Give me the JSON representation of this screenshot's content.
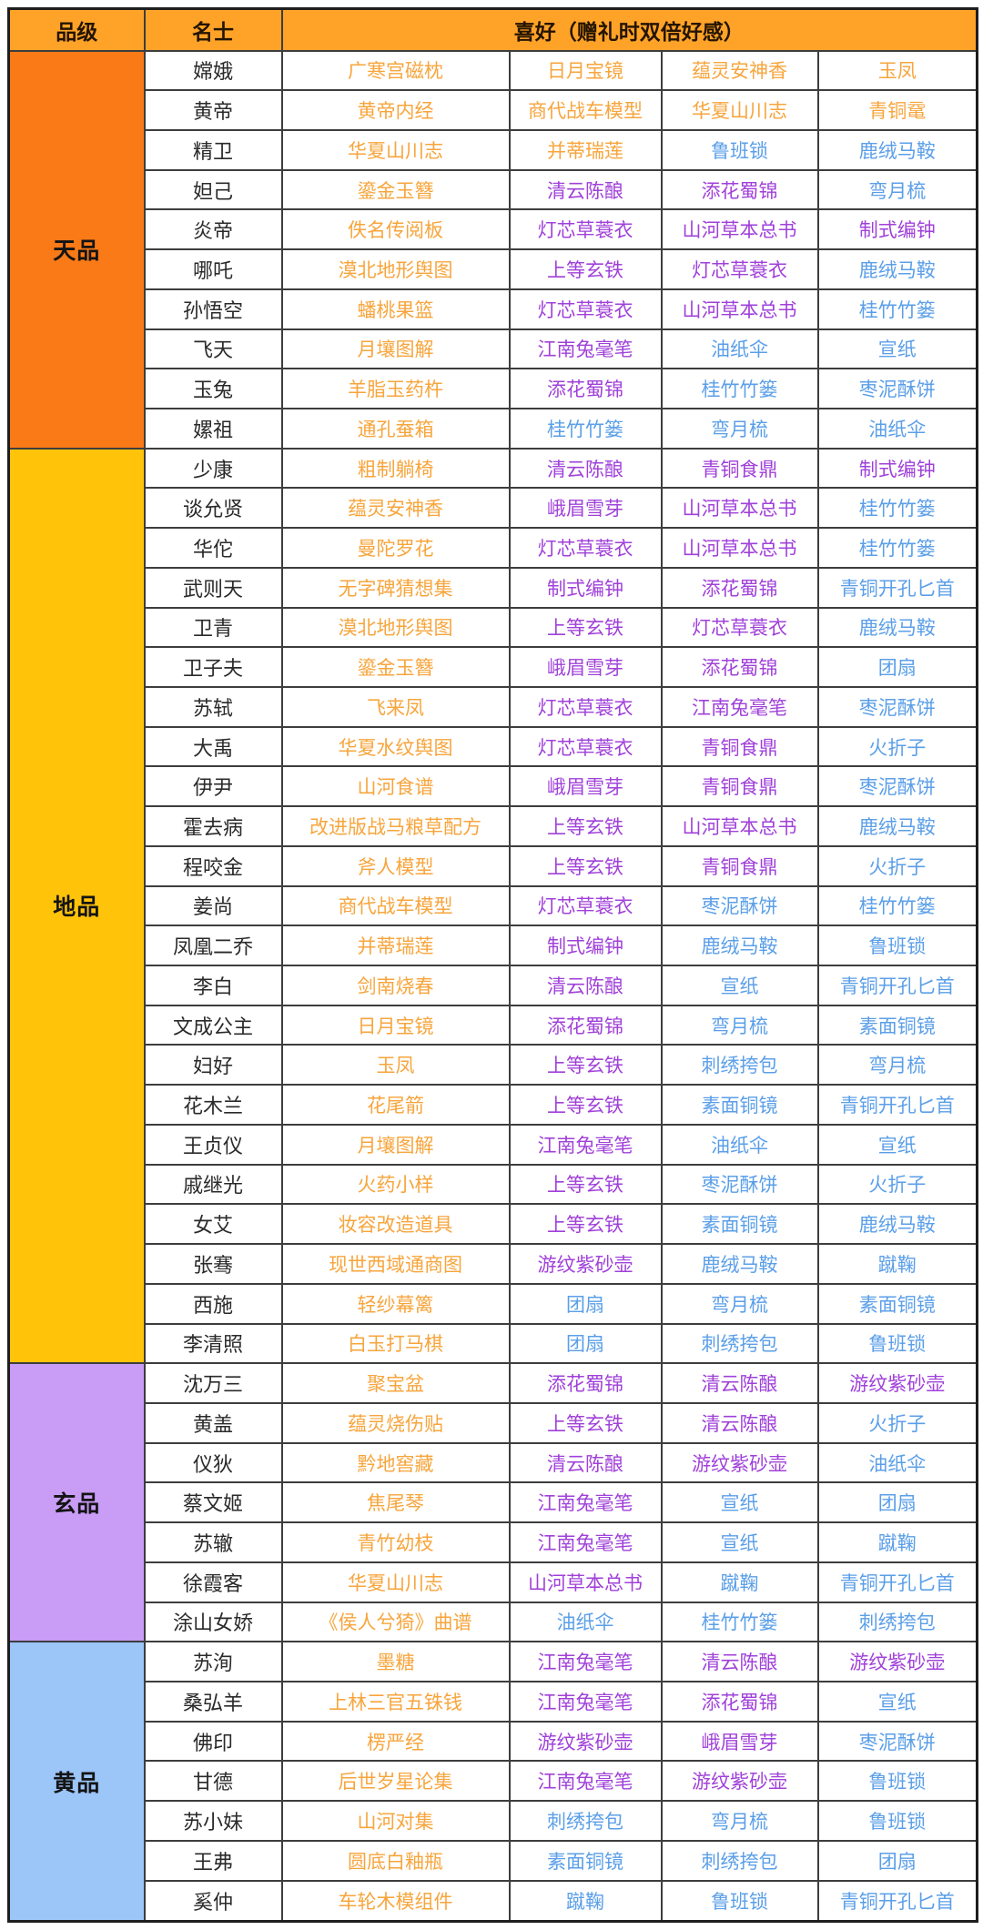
{
  "table_meta": {
    "header_bg": "#FFA328",
    "border_color": "#3d3d3d",
    "name_text_color": "#2a2a2a"
  },
  "chart_data": {
    "type": "table",
    "columns": [
      "品级",
      "名士",
      "喜好（赠礼时双倍好感）"
    ],
    "gift_color_palette": {
      "orange": "#F7A53C",
      "purple": "#A041D9",
      "blue": "#5B9FE8"
    },
    "sections": [
      {
        "grade": "天品",
        "grade_bg": "#FA7A17",
        "rows": [
          {
            "name": "嫦娥",
            "gifts": [
              "广寒宫磁枕",
              "日月宝镜",
              "蕴灵安神香",
              "玉凤"
            ],
            "gift_colors": [
              "orange",
              "orange",
              "orange",
              "orange"
            ]
          },
          {
            "name": "黄帝",
            "gifts": [
              "黄帝内经",
              "商代战车模型",
              "华夏山川志",
              "青铜鼋"
            ],
            "gift_colors": [
              "orange",
              "orange",
              "orange",
              "orange"
            ]
          },
          {
            "name": "精卫",
            "gifts": [
              "华夏山川志",
              "并蒂瑞莲",
              "鲁班锁",
              "鹿绒马鞍"
            ],
            "gift_colors": [
              "orange",
              "orange",
              "blue",
              "blue"
            ]
          },
          {
            "name": "妲己",
            "gifts": [
              "鎏金玉簪",
              "清云陈酿",
              "添花蜀锦",
              "弯月梳"
            ],
            "gift_colors": [
              "orange",
              "purple",
              "purple",
              "blue"
            ]
          },
          {
            "name": "炎帝",
            "gifts": [
              "佚名传阅板",
              "灯芯草蓑衣",
              "山河草本总书",
              "制式编钟"
            ],
            "gift_colors": [
              "orange",
              "purple",
              "purple",
              "purple"
            ]
          },
          {
            "name": "哪吒",
            "gifts": [
              "漠北地形舆图",
              "上等玄铁",
              "灯芯草蓑衣",
              "鹿绒马鞍"
            ],
            "gift_colors": [
              "orange",
              "purple",
              "purple",
              "blue"
            ]
          },
          {
            "name": "孙悟空",
            "gifts": [
              "蟠桃果篮",
              "灯芯草蓑衣",
              "山河草本总书",
              "桂竹竹篓"
            ],
            "gift_colors": [
              "orange",
              "purple",
              "purple",
              "blue"
            ]
          },
          {
            "name": "飞天",
            "gifts": [
              "月壤图解",
              "江南兔毫笔",
              "油纸伞",
              "宣纸"
            ],
            "gift_colors": [
              "orange",
              "purple",
              "blue",
              "blue"
            ]
          },
          {
            "name": "玉兔",
            "gifts": [
              "羊脂玉药杵",
              "添花蜀锦",
              "桂竹竹篓",
              "枣泥酥饼"
            ],
            "gift_colors": [
              "orange",
              "purple",
              "blue",
              "blue"
            ]
          },
          {
            "name": "嫘祖",
            "gifts": [
              "通孔蚕箱",
              "桂竹竹篓",
              "弯月梳",
              "油纸伞"
            ],
            "gift_colors": [
              "orange",
              "blue",
              "blue",
              "blue"
            ]
          }
        ]
      },
      {
        "grade": "地品",
        "grade_bg": "#FFC40A",
        "rows": [
          {
            "name": "少康",
            "gifts": [
              "粗制躺椅",
              "清云陈酿",
              "青铜食鼎",
              "制式编钟"
            ],
            "gift_colors": [
              "orange",
              "purple",
              "purple",
              "purple"
            ]
          },
          {
            "name": "谈允贤",
            "gifts": [
              "蕴灵安神香",
              "峨眉雪芽",
              "山河草本总书",
              "桂竹竹篓"
            ],
            "gift_colors": [
              "orange",
              "purple",
              "purple",
              "blue"
            ]
          },
          {
            "name": "华佗",
            "gifts": [
              "曼陀罗花",
              "灯芯草蓑衣",
              "山河草本总书",
              "桂竹竹篓"
            ],
            "gift_colors": [
              "orange",
              "purple",
              "purple",
              "blue"
            ]
          },
          {
            "name": "武则天",
            "gifts": [
              "无字碑猜想集",
              "制式编钟",
              "添花蜀锦",
              "青铜开孔匕首"
            ],
            "gift_colors": [
              "orange",
              "purple",
              "purple",
              "blue"
            ]
          },
          {
            "name": "卫青",
            "gifts": [
              "漠北地形舆图",
              "上等玄铁",
              "灯芯草蓑衣",
              "鹿绒马鞍"
            ],
            "gift_colors": [
              "orange",
              "purple",
              "purple",
              "blue"
            ]
          },
          {
            "name": "卫子夫",
            "gifts": [
              "鎏金玉簪",
              "峨眉雪芽",
              "添花蜀锦",
              "团扇"
            ],
            "gift_colors": [
              "orange",
              "purple",
              "purple",
              "blue"
            ]
          },
          {
            "name": "苏轼",
            "gifts": [
              "飞来凤",
              "灯芯草蓑衣",
              "江南兔毫笔",
              "枣泥酥饼"
            ],
            "gift_colors": [
              "orange",
              "purple",
              "purple",
              "blue"
            ]
          },
          {
            "name": "大禹",
            "gifts": [
              "华夏水纹舆图",
              "灯芯草蓑衣",
              "青铜食鼎",
              "火折子"
            ],
            "gift_colors": [
              "orange",
              "purple",
              "purple",
              "blue"
            ]
          },
          {
            "name": "伊尹",
            "gifts": [
              "山河食谱",
              "峨眉雪芽",
              "青铜食鼎",
              "枣泥酥饼"
            ],
            "gift_colors": [
              "orange",
              "purple",
              "purple",
              "blue"
            ]
          },
          {
            "name": "霍去病",
            "gifts": [
              "改进版战马粮草配方",
              "上等玄铁",
              "山河草本总书",
              "鹿绒马鞍"
            ],
            "gift_colors": [
              "orange",
              "purple",
              "purple",
              "blue"
            ]
          },
          {
            "name": "程咬金",
            "gifts": [
              "斧人模型",
              "上等玄铁",
              "青铜食鼎",
              "火折子"
            ],
            "gift_colors": [
              "orange",
              "purple",
              "purple",
              "blue"
            ]
          },
          {
            "name": "姜尚",
            "gifts": [
              "商代战车模型",
              "灯芯草蓑衣",
              "枣泥酥饼",
              "桂竹竹篓"
            ],
            "gift_colors": [
              "orange",
              "purple",
              "blue",
              "blue"
            ]
          },
          {
            "name": "凤凰二乔",
            "gifts": [
              "并蒂瑞莲",
              "制式编钟",
              "鹿绒马鞍",
              "鲁班锁"
            ],
            "gift_colors": [
              "orange",
              "purple",
              "blue",
              "blue"
            ]
          },
          {
            "name": "李白",
            "gifts": [
              "剑南烧春",
              "清云陈酿",
              "宣纸",
              "青铜开孔匕首"
            ],
            "gift_colors": [
              "orange",
              "purple",
              "blue",
              "blue"
            ]
          },
          {
            "name": "文成公主",
            "gifts": [
              "日月宝镜",
              "添花蜀锦",
              "弯月梳",
              "素面铜镜"
            ],
            "gift_colors": [
              "orange",
              "purple",
              "blue",
              "blue"
            ]
          },
          {
            "name": "妇好",
            "gifts": [
              "玉凤",
              "上等玄铁",
              "刺绣挎包",
              "弯月梳"
            ],
            "gift_colors": [
              "orange",
              "purple",
              "blue",
              "blue"
            ]
          },
          {
            "name": "花木兰",
            "gifts": [
              "花尾箭",
              "上等玄铁",
              "素面铜镜",
              "青铜开孔匕首"
            ],
            "gift_colors": [
              "orange",
              "purple",
              "blue",
              "blue"
            ]
          },
          {
            "name": "王贞仪",
            "gifts": [
              "月壤图解",
              "江南兔毫笔",
              "油纸伞",
              "宣纸"
            ],
            "gift_colors": [
              "orange",
              "purple",
              "blue",
              "blue"
            ]
          },
          {
            "name": "戚继光",
            "gifts": [
              "火药小样",
              "上等玄铁",
              "枣泥酥饼",
              "火折子"
            ],
            "gift_colors": [
              "orange",
              "purple",
              "blue",
              "blue"
            ]
          },
          {
            "name": "女艾",
            "gifts": [
              "妆容改造道具",
              "上等玄铁",
              "素面铜镜",
              "鹿绒马鞍"
            ],
            "gift_colors": [
              "orange",
              "purple",
              "blue",
              "blue"
            ]
          },
          {
            "name": "张骞",
            "gifts": [
              "现世西域通商图",
              "游纹紫砂壶",
              "鹿绒马鞍",
              "蹴鞠"
            ],
            "gift_colors": [
              "orange",
              "purple",
              "blue",
              "blue"
            ]
          },
          {
            "name": "西施",
            "gifts": [
              "轻纱幕篱",
              "团扇",
              "弯月梳",
              "素面铜镜"
            ],
            "gift_colors": [
              "orange",
              "blue",
              "blue",
              "blue"
            ]
          },
          {
            "name": "李清照",
            "gifts": [
              "白玉打马棋",
              "团扇",
              "刺绣挎包",
              "鲁班锁"
            ],
            "gift_colors": [
              "orange",
              "blue",
              "blue",
              "blue"
            ]
          }
        ]
      },
      {
        "grade": "玄品",
        "grade_bg": "#C99CF6",
        "rows": [
          {
            "name": "沈万三",
            "gifts": [
              "聚宝盆",
              "添花蜀锦",
              "清云陈酿",
              "游纹紫砂壶"
            ],
            "gift_colors": [
              "orange",
              "purple",
              "purple",
              "purple"
            ]
          },
          {
            "name": "黄盖",
            "gifts": [
              "蕴灵烧伤贴",
              "上等玄铁",
              "清云陈酿",
              "火折子"
            ],
            "gift_colors": [
              "orange",
              "purple",
              "purple",
              "blue"
            ]
          },
          {
            "name": "仪狄",
            "gifts": [
              "黔地窖藏",
              "清云陈酿",
              "游纹紫砂壶",
              "油纸伞"
            ],
            "gift_colors": [
              "orange",
              "purple",
              "purple",
              "blue"
            ]
          },
          {
            "name": "蔡文姬",
            "gifts": [
              "焦尾琴",
              "江南兔毫笔",
              "宣纸",
              "团扇"
            ],
            "gift_colors": [
              "orange",
              "purple",
              "blue",
              "blue"
            ]
          },
          {
            "name": "苏辙",
            "gifts": [
              "青竹幼枝",
              "江南兔毫笔",
              "宣纸",
              "蹴鞠"
            ],
            "gift_colors": [
              "orange",
              "purple",
              "blue",
              "blue"
            ]
          },
          {
            "name": "徐霞客",
            "gifts": [
              "华夏山川志",
              "山河草本总书",
              "蹴鞠",
              "青铜开孔匕首"
            ],
            "gift_colors": [
              "orange",
              "purple",
              "blue",
              "blue"
            ]
          },
          {
            "name": "涂山女娇",
            "gifts": [
              "《侯人兮猗》曲谱",
              "油纸伞",
              "桂竹竹篓",
              "刺绣挎包"
            ],
            "gift_colors": [
              "orange",
              "blue",
              "blue",
              "blue"
            ]
          }
        ]
      },
      {
        "grade": "黄品",
        "grade_bg": "#9CC5F8",
        "rows": [
          {
            "name": "苏洵",
            "gifts": [
              "墨糖",
              "江南兔毫笔",
              "清云陈酿",
              "游纹紫砂壶"
            ],
            "gift_colors": [
              "orange",
              "purple",
              "purple",
              "purple"
            ]
          },
          {
            "name": "桑弘羊",
            "gifts": [
              "上林三官五铢钱",
              "江南兔毫笔",
              "添花蜀锦",
              "宣纸"
            ],
            "gift_colors": [
              "orange",
              "purple",
              "purple",
              "blue"
            ]
          },
          {
            "name": "佛印",
            "gifts": [
              "楞严经",
              "游纹紫砂壶",
              "峨眉雪芽",
              "枣泥酥饼"
            ],
            "gift_colors": [
              "orange",
              "purple",
              "purple",
              "blue"
            ]
          },
          {
            "name": "甘德",
            "gifts": [
              "后世岁星论集",
              "江南兔毫笔",
              "游纹紫砂壶",
              "鲁班锁"
            ],
            "gift_colors": [
              "orange",
              "purple",
              "purple",
              "blue"
            ]
          },
          {
            "name": "苏小妹",
            "gifts": [
              "山河对集",
              "刺绣挎包",
              "弯月梳",
              "鲁班锁"
            ],
            "gift_colors": [
              "orange",
              "blue",
              "blue",
              "blue"
            ]
          },
          {
            "name": "王弗",
            "gifts": [
              "圆底白釉瓶",
              "素面铜镜",
              "刺绣挎包",
              "团扇"
            ],
            "gift_colors": [
              "orange",
              "blue",
              "blue",
              "blue"
            ]
          },
          {
            "name": "奚仲",
            "gifts": [
              "车轮木模组件",
              "蹴鞠",
              "鲁班锁",
              "青铜开孔匕首"
            ],
            "gift_colors": [
              "orange",
              "blue",
              "blue",
              "blue"
            ]
          }
        ]
      }
    ]
  }
}
